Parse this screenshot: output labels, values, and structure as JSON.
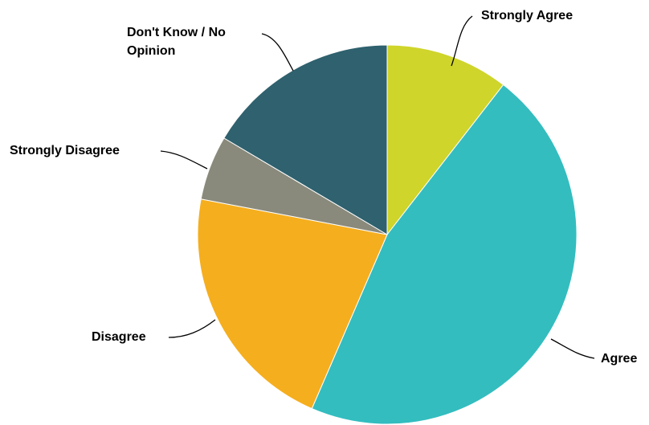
{
  "chart_data": {
    "type": "pie",
    "title": "",
    "slices": [
      {
        "label": "Strongly Agree",
        "value": 10.5,
        "color": "#cfd52a"
      },
      {
        "label": "Agree",
        "value": 46,
        "color": "#33bdbf"
      },
      {
        "label": "Disagree",
        "value": 21.5,
        "color": "#f5ae1e"
      },
      {
        "label": "Strongly Disagree",
        "value": 5.5,
        "color": "#8a8a7c"
      },
      {
        "label": "Don't Know / No Opinion",
        "value": 16.5,
        "color": "#2f616e"
      }
    ],
    "legend": "none"
  },
  "labels": {
    "strongly_agree": "Strongly Agree",
    "agree": "Agree",
    "disagree": "Disagree",
    "strongly_disagree": "Strongly Disagree",
    "dont_know_line1": "Don't Know / No",
    "dont_know_line2": "Opinion"
  }
}
